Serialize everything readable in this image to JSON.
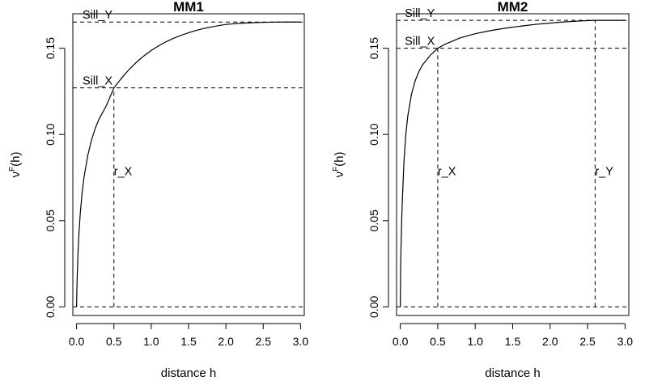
{
  "chart_data": [
    {
      "type": "line",
      "title": "MM1",
      "xlabel": "distance h",
      "ylabel_base": "ν",
      "ylabel_sup": "F",
      "ylabel_suffix": "(h)",
      "xlim": [
        -0.05,
        3.05
      ],
      "ylim": [
        -0.005,
        0.17
      ],
      "xticks": [
        0.0,
        0.5,
        1.0,
        1.5,
        2.0,
        2.5,
        3.0
      ],
      "xtick_labels": [
        "0.0",
        "0.5",
        "1.0",
        "1.5",
        "2.0",
        "2.5",
        "3.0"
      ],
      "yticks": [
        0.0,
        0.05,
        0.1,
        0.15
      ],
      "ytick_labels": [
        "0.00",
        "0.05",
        "0.10",
        "0.15"
      ],
      "series": [
        {
          "name": "variogram",
          "x": [
            0.0,
            0.005,
            0.01,
            0.02,
            0.03,
            0.05,
            0.075,
            0.1,
            0.15,
            0.2,
            0.25,
            0.3,
            0.4,
            0.5,
            0.6,
            0.7,
            0.8,
            0.9,
            1.0,
            1.1,
            1.2,
            1.3,
            1.4,
            1.5,
            1.6,
            1.7,
            1.8,
            1.9,
            2.0,
            2.2,
            2.4,
            2.6,
            2.8,
            3.0
          ],
          "y": [
            0.0,
            0.0117,
            0.0198,
            0.0319,
            0.0411,
            0.0546,
            0.0664,
            0.0752,
            0.0878,
            0.0967,
            0.1035,
            0.1088,
            0.1168,
            0.127,
            0.1325,
            0.1375,
            0.1418,
            0.1455,
            0.1487,
            0.1514,
            0.1538,
            0.1558,
            0.1575,
            0.159,
            0.1603,
            0.1614,
            0.1623,
            0.1631,
            0.1638,
            0.1645,
            0.1649,
            0.1651,
            0.1652,
            0.1652
          ]
        }
      ],
      "reference_lines": [
        {
          "kind": "h",
          "value": 0.0
        },
        {
          "kind": "h",
          "value": 0.1652
        },
        {
          "kind": "h",
          "value": 0.127
        },
        {
          "kind": "v",
          "value": 0.5,
          "from": 0.0,
          "to": 0.127
        }
      ],
      "annotations": [
        {
          "label": "Sill_Y",
          "x": 0.08,
          "y": 0.1652,
          "anchor": "start"
        },
        {
          "label": "Sill_X",
          "x": 0.08,
          "y": 0.127,
          "anchor": "start"
        },
        {
          "label": "r_X",
          "x": 0.5,
          "y": 0.0745,
          "anchor": "start"
        }
      ]
    },
    {
      "type": "line",
      "title": "MM2",
      "xlabel": "distance h",
      "ylabel_base": "ν",
      "ylabel_sup": "F",
      "ylabel_suffix": "(h)",
      "xlim": [
        -0.05,
        3.05
      ],
      "ylim": [
        -0.005,
        0.17
      ],
      "xticks": [
        0.0,
        0.5,
        1.0,
        1.5,
        2.0,
        2.5,
        3.0
      ],
      "xtick_labels": [
        "0.0",
        "0.5",
        "1.0",
        "1.5",
        "2.0",
        "2.5",
        "3.0"
      ],
      "yticks": [
        0.0,
        0.05,
        0.1,
        0.15
      ],
      "ytick_labels": [
        "0.00",
        "0.05",
        "0.10",
        "0.15"
      ],
      "series": [
        {
          "name": "variogram",
          "x": [
            0.0,
            0.005,
            0.01,
            0.02,
            0.03,
            0.05,
            0.075,
            0.1,
            0.15,
            0.2,
            0.25,
            0.3,
            0.4,
            0.5,
            0.6,
            0.8,
            1.0,
            1.2,
            1.4,
            1.6,
            1.8,
            2.0,
            2.2,
            2.4,
            2.6,
            2.8,
            3.0
          ],
          "y": [
            0.0,
            0.022,
            0.0347,
            0.0525,
            0.0648,
            0.0851,
            0.1005,
            0.1107,
            0.1235,
            0.1313,
            0.1366,
            0.1405,
            0.1459,
            0.15,
            0.1524,
            0.156,
            0.1584,
            0.1602,
            0.1616,
            0.1628,
            0.1638,
            0.1646,
            0.1653,
            0.1658,
            0.1662,
            0.1662,
            0.1662
          ]
        }
      ],
      "reference_lines": [
        {
          "kind": "h",
          "value": 0.0
        },
        {
          "kind": "h",
          "value": 0.1662
        },
        {
          "kind": "h",
          "value": 0.15
        },
        {
          "kind": "v",
          "value": 0.5,
          "from": 0.0,
          "to": 0.15
        },
        {
          "kind": "v",
          "value": 2.6,
          "from": 0.0,
          "to": 0.1662
        }
      ],
      "annotations": [
        {
          "label": "Sill_Y",
          "x": 0.06,
          "y": 0.1662,
          "anchor": "start"
        },
        {
          "label": "Sill_X",
          "x": 0.06,
          "y": 0.15,
          "anchor": "start"
        },
        {
          "label": "r_X",
          "x": 0.5,
          "y": 0.0745,
          "anchor": "start"
        },
        {
          "label": "r_Y",
          "x": 2.6,
          "y": 0.0745,
          "anchor": "start"
        }
      ]
    }
  ]
}
